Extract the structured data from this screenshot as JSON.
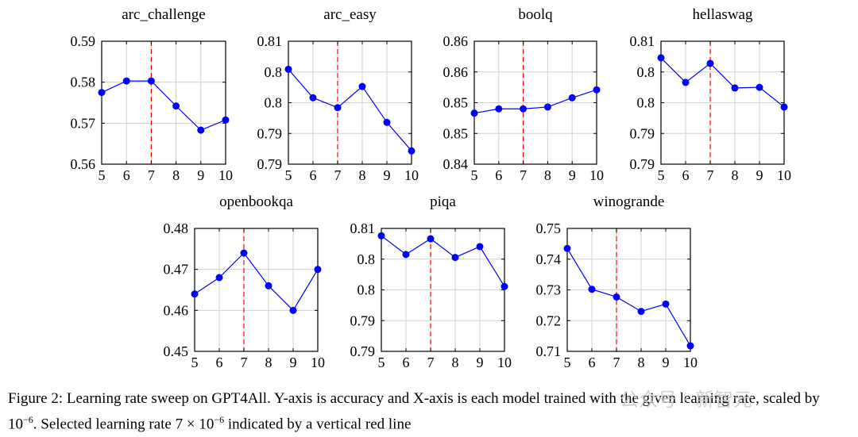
{
  "chart_data": [
    {
      "type": "line",
      "title": "arc_challenge",
      "categories": [
        5,
        6,
        7,
        8,
        9,
        10
      ],
      "x": [
        5,
        6,
        7,
        8,
        9,
        10
      ],
      "values": [
        0.5775,
        0.5803,
        0.5803,
        0.5742,
        0.5683,
        0.5708
      ],
      "ylim": [
        0.56,
        0.59
      ],
      "yticks": [
        "0.56",
        "0.57",
        "0.58",
        "0.59"
      ],
      "xticks": [
        "5",
        "6",
        "7",
        "8",
        "9",
        "10"
      ],
      "vline": 7,
      "grid": true
    },
    {
      "type": "line",
      "title": "arc_easy",
      "categories": [
        5,
        6,
        7,
        8,
        9,
        10
      ],
      "x": [
        5,
        6,
        7,
        8,
        9,
        10
      ],
      "values": [
        0.8043,
        0.7985,
        0.7965,
        0.8008,
        0.7935,
        0.7877
      ],
      "ylim": [
        0.785,
        0.81
      ],
      "yticks": [
        "0.79",
        "0.79",
        "0.8",
        "0.8",
        "0.81"
      ],
      "xticks": [
        "5",
        "6",
        "7",
        "8",
        "9",
        "10"
      ],
      "vline": 7,
      "grid": true
    },
    {
      "type": "line",
      "title": "boolq",
      "categories": [
        5,
        6,
        7,
        8,
        9,
        10
      ],
      "x": [
        5,
        6,
        7,
        8,
        9,
        10
      ],
      "values": [
        0.8483,
        0.849,
        0.849,
        0.8493,
        0.8508,
        0.8521
      ],
      "ylim": [
        0.84,
        0.86
      ],
      "yticks": [
        "0.84",
        "0.85",
        "0.85",
        "0.86",
        "0.86"
      ],
      "xticks": [
        "5",
        "6",
        "7",
        "8",
        "9",
        "10"
      ],
      "vline": 7,
      "grid": true
    },
    {
      "type": "line",
      "title": "hellaswag",
      "categories": [
        5,
        6,
        7,
        8,
        9,
        10
      ],
      "x": [
        5,
        6,
        7,
        8,
        9,
        10
      ],
      "values": [
        0.8073,
        0.8033,
        0.8064,
        0.8024,
        0.8025,
        0.7993
      ],
      "ylim": [
        0.79,
        0.81
      ],
      "yticks": [
        "0.79",
        "0.79",
        "0.8",
        "0.8",
        "0.81"
      ],
      "xticks": [
        "5",
        "6",
        "7",
        "8",
        "9",
        "10"
      ],
      "vline": 7,
      "grid": true
    },
    {
      "type": "line",
      "title": "openbookqa",
      "categories": [
        5,
        6,
        7,
        8,
        9,
        10
      ],
      "x": [
        5,
        6,
        7,
        8,
        9,
        10
      ],
      "values": [
        0.464,
        0.468,
        0.474,
        0.466,
        0.46,
        0.47
      ],
      "ylim": [
        0.45,
        0.48
      ],
      "yticks": [
        "0.45",
        "0.46",
        "0.47",
        "0.48"
      ],
      "xticks": [
        "5",
        "6",
        "7",
        "8",
        "9",
        "10"
      ],
      "vline": 7,
      "grid": true
    },
    {
      "type": "line",
      "title": "piqa",
      "categories": [
        5,
        6,
        7,
        8,
        9,
        10
      ],
      "x": [
        5,
        6,
        7,
        8,
        9,
        10
      ],
      "values": [
        0.8085,
        0.8047,
        0.8079,
        0.8041,
        0.8063,
        0.7982
      ],
      "ylim": [
        0.785,
        0.81
      ],
      "yticks": [
        "0.79",
        "0.79",
        "0.8",
        "0.8",
        "0.81"
      ],
      "xticks": [
        "5",
        "6",
        "7",
        "8",
        "9",
        "10"
      ],
      "vline": 7,
      "grid": true
    },
    {
      "type": "line",
      "title": "winogrande",
      "categories": [
        5,
        6,
        7,
        8,
        9,
        10
      ],
      "x": [
        5,
        6,
        7,
        8,
        9,
        10
      ],
      "values": [
        0.7435,
        0.7302,
        0.7277,
        0.723,
        0.7254,
        0.7118
      ],
      "ylim": [
        0.71,
        0.75
      ],
      "yticks": [
        "0.71",
        "0.72",
        "0.73",
        "0.74",
        "0.75"
      ],
      "xticks": [
        "5",
        "6",
        "7",
        "8",
        "9",
        "10"
      ],
      "vline": 7,
      "grid": true
    }
  ],
  "colors": {
    "line": "#0000ff",
    "marker": "#0000ff",
    "vline": "#ff0000",
    "grid": "#d0d0d0",
    "axis": "#000000"
  },
  "caption": {
    "part1": "Figure 2: Learning rate sweep on GPT4All. Y-axis is accuracy and X-axis is each model trained with the given learning rate, scaled by 10",
    "exp1": "−6",
    "part2": ". Selected learning rate 7 × 10",
    "exp2": "−6",
    "part3": " indicated by a vertical red line"
  },
  "watermark": "公众号 · 新智元"
}
